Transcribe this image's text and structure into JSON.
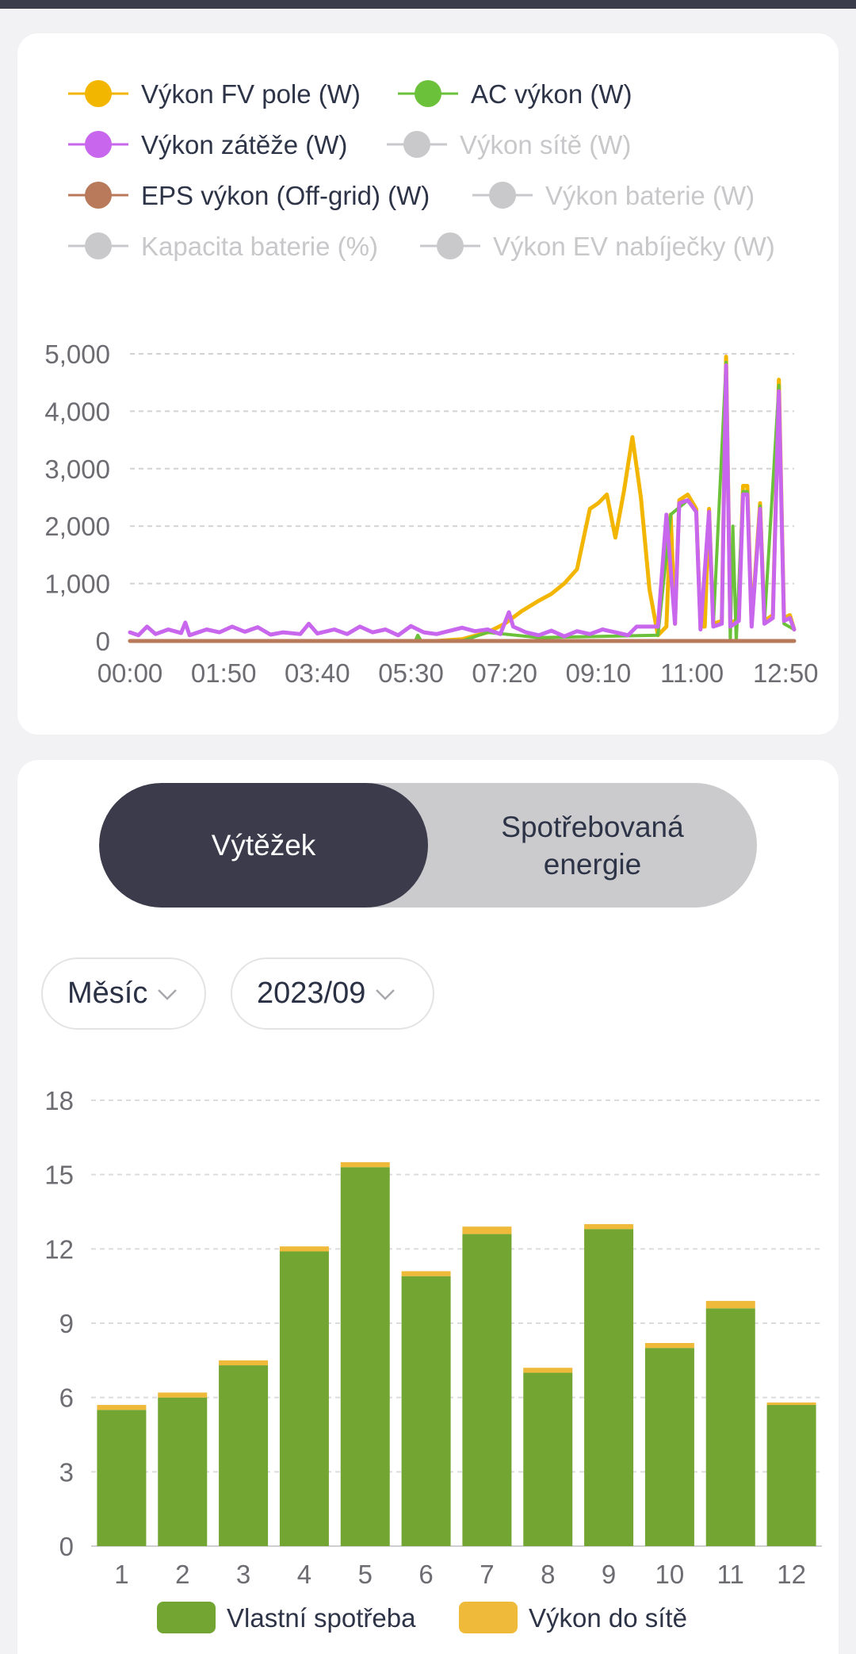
{
  "power_chart": {
    "legend": [
      {
        "label": "Výkon FV pole (W)",
        "color": "#f3b600",
        "active": true
      },
      {
        "label": "AC výkon (W)",
        "color": "#6cc13a",
        "active": true
      },
      {
        "label": "Výkon zátěže (W)",
        "color": "#c867ee",
        "active": true
      },
      {
        "label": "Výkon sítě (W)",
        "color": "#c9c9cc",
        "active": false
      },
      {
        "label": "EPS výkon (Off-grid) (W)",
        "color": "#b87a5b",
        "active": true
      },
      {
        "label": "Výkon baterie (W)",
        "color": "#c9c9cc",
        "active": false
      },
      {
        "label": "Kapacita baterie (%)",
        "color": "#c9c9cc",
        "active": false
      },
      {
        "label": "Výkon EV nabíječky (W)",
        "color": "#c9c9cc",
        "active": false
      }
    ],
    "y_ticks": [
      "0",
      "1,000",
      "2,000",
      "3,000",
      "4,000",
      "5,000"
    ],
    "x_ticks": [
      "00:00",
      "01:50",
      "03:40",
      "05:30",
      "07:20",
      "09:10",
      "11:00",
      "12:50"
    ]
  },
  "chart_data": [
    {
      "type": "line",
      "x_unit": "time (HH:MM)",
      "ylim": [
        0,
        5000
      ],
      "xlim": [
        "00:00",
        "13:00"
      ],
      "grid": true,
      "legend_position": "top",
      "series": [
        {
          "name": "Výkon FV pole (W)",
          "color": "#f3b600",
          "points": [
            [
              "00:00",
              0
            ],
            [
              "06:00",
              0
            ],
            [
              "06:30",
              30
            ],
            [
              "07:00",
              150
            ],
            [
              "07:20",
              300
            ],
            [
              "07:40",
              520
            ],
            [
              "08:00",
              700
            ],
            [
              "08:15",
              820
            ],
            [
              "08:30",
              1000
            ],
            [
              "08:45",
              1250
            ],
            [
              "09:00",
              2300
            ],
            [
              "09:10",
              2400
            ],
            [
              "09:20",
              2550
            ],
            [
              "09:30",
              1800
            ],
            [
              "09:40",
              2600
            ],
            [
              "09:50",
              3550
            ],
            [
              "10:00",
              2500
            ],
            [
              "10:10",
              900
            ],
            [
              "10:20",
              100
            ],
            [
              "10:30",
              250
            ],
            [
              "10:35",
              2200
            ],
            [
              "10:40",
              300
            ],
            [
              "10:45",
              2450
            ],
            [
              "10:55",
              2550
            ],
            [
              "11:05",
              2300
            ],
            [
              "11:10",
              250
            ],
            [
              "11:15",
              250
            ],
            [
              "11:20",
              2300
            ],
            [
              "11:25",
              300
            ],
            [
              "11:35",
              350
            ],
            [
              "11:40",
              4950
            ],
            [
              "11:45",
              300
            ],
            [
              "11:55",
              400
            ],
            [
              "12:00",
              2700
            ],
            [
              "12:05",
              2700
            ],
            [
              "12:10",
              300
            ],
            [
              "12:20",
              2400
            ],
            [
              "12:25",
              350
            ],
            [
              "12:35",
              450
            ],
            [
              "12:42",
              4550
            ],
            [
              "12:48",
              400
            ],
            [
              "12:55",
              450
            ],
            [
              "13:00",
              200
            ]
          ]
        },
        {
          "name": "AC výkon (W)",
          "color": "#6cc13a",
          "points": [
            [
              "00:00",
              0
            ],
            [
              "05:35",
              0
            ],
            [
              "05:38",
              100
            ],
            [
              "05:42",
              0
            ],
            [
              "06:30",
              0
            ],
            [
              "07:00",
              150
            ],
            [
              "08:00",
              60
            ],
            [
              "10:20",
              100
            ],
            [
              "10:35",
              2200
            ],
            [
              "10:55",
              2450
            ],
            [
              "11:05",
              2250
            ],
            [
              "11:10",
              200
            ],
            [
              "11:20",
              2250
            ],
            [
              "11:25",
              250
            ],
            [
              "11:40",
              4850
            ],
            [
              "11:45",
              0
            ],
            [
              "11:48",
              2000
            ],
            [
              "11:52",
              0
            ],
            [
              "12:00",
              2600
            ],
            [
              "12:05",
              2600
            ],
            [
              "12:10",
              250
            ],
            [
              "12:20",
              2350
            ],
            [
              "12:25",
              300
            ],
            [
              "12:42",
              4450
            ],
            [
              "12:48",
              300
            ],
            [
              "13:00",
              200
            ]
          ]
        },
        {
          "name": "Výkon zátěže (W)",
          "color": "#c867ee",
          "points": [
            [
              "00:00",
              150
            ],
            [
              "00:10",
              100
            ],
            [
              "00:20",
              250
            ],
            [
              "00:30",
              120
            ],
            [
              "00:45",
              200
            ],
            [
              "01:00",
              140
            ],
            [
              "01:05",
              320
            ],
            [
              "01:10",
              100
            ],
            [
              "01:30",
              200
            ],
            [
              "01:45",
              150
            ],
            [
              "02:00",
              250
            ],
            [
              "02:15",
              160
            ],
            [
              "02:30",
              240
            ],
            [
              "02:45",
              110
            ],
            [
              "03:00",
              150
            ],
            [
              "03:20",
              120
            ],
            [
              "03:30",
              300
            ],
            [
              "03:40",
              130
            ],
            [
              "04:00",
              200
            ],
            [
              "04:15",
              120
            ],
            [
              "04:30",
              250
            ],
            [
              "04:45",
              150
            ],
            [
              "05:00",
              200
            ],
            [
              "05:15",
              100
            ],
            [
              "05:30",
              260
            ],
            [
              "05:45",
              150
            ],
            [
              "06:00",
              120
            ],
            [
              "06:30",
              230
            ],
            [
              "06:45",
              170
            ],
            [
              "07:00",
              200
            ],
            [
              "07:15",
              120
            ],
            [
              "07:25",
              500
            ],
            [
              "07:30",
              250
            ],
            [
              "07:45",
              150
            ],
            [
              "08:00",
              100
            ],
            [
              "08:15",
              180
            ],
            [
              "08:30",
              80
            ],
            [
              "08:45",
              170
            ],
            [
              "09:00",
              120
            ],
            [
              "09:15",
              200
            ],
            [
              "09:30",
              150
            ],
            [
              "09:45",
              100
            ],
            [
              "09:55",
              250
            ],
            [
              "10:10",
              250
            ],
            [
              "10:20",
              250
            ],
            [
              "10:30",
              2200
            ],
            [
              "10:40",
              300
            ],
            [
              "10:45",
              2400
            ],
            [
              "10:55",
              2450
            ],
            [
              "11:05",
              2250
            ],
            [
              "11:10",
              200
            ],
            [
              "11:20",
              2250
            ],
            [
              "11:25",
              250
            ],
            [
              "11:35",
              300
            ],
            [
              "11:40",
              4800
            ],
            [
              "11:45",
              250
            ],
            [
              "11:55",
              350
            ],
            [
              "12:00",
              2550
            ],
            [
              "12:05",
              2550
            ],
            [
              "12:10",
              250
            ],
            [
              "12:20",
              2300
            ],
            [
              "12:25",
              300
            ],
            [
              "12:35",
              400
            ],
            [
              "12:42",
              4350
            ],
            [
              "12:48",
              350
            ],
            [
              "12:55",
              400
            ],
            [
              "13:00",
              200
            ]
          ]
        },
        {
          "name": "EPS výkon (Off-grid) (W)",
          "color": "#b87a5b",
          "points": [
            [
              "00:00",
              0
            ],
            [
              "13:00",
              0
            ]
          ]
        }
      ]
    },
    {
      "type": "bar",
      "stacked": true,
      "ylim": [
        0,
        18
      ],
      "grid": true,
      "legend_position": "bottom",
      "categories": [
        "1",
        "2",
        "3",
        "4",
        "5",
        "6",
        "7",
        "8",
        "9",
        "10",
        "11",
        "12"
      ],
      "y_ticks": [
        "0",
        "3",
        "6",
        "9",
        "12",
        "15",
        "18"
      ],
      "series": [
        {
          "name": "Vlastní spotřeba",
          "color": "#72a531",
          "values": [
            5.5,
            6.0,
            7.3,
            11.9,
            15.3,
            10.9,
            12.6,
            7.0,
            12.8,
            8.0,
            9.6,
            5.7
          ]
        },
        {
          "name": "Výkon do sítě",
          "color": "#efb93a",
          "values": [
            0.2,
            0.2,
            0.2,
            0.2,
            0.2,
            0.2,
            0.3,
            0.2,
            0.2,
            0.2,
            0.3,
            0.1
          ]
        }
      ]
    }
  ],
  "energy_panel": {
    "tabs": {
      "yield": "Výtěžek",
      "consumed_line1": "Spotřebovaná",
      "consumed_line2": "energie"
    },
    "period_select": {
      "value": "Měsíc"
    },
    "date_select": {
      "value": "2023/09"
    }
  }
}
